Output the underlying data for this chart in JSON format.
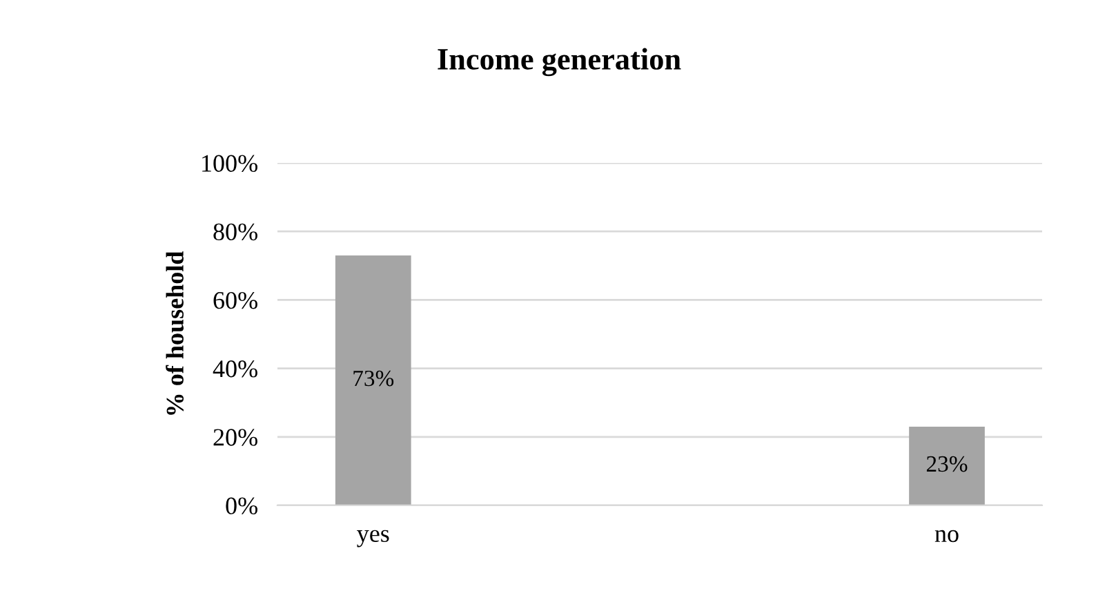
{
  "chart_data": {
    "type": "bar",
    "title": "Income generation",
    "ylabel": "% of household",
    "categories": [
      "yes",
      "no"
    ],
    "series": [
      {
        "color": "#a5a5a5",
        "values": [
          73,
          23
        ],
        "value_labels": [
          "73%",
          "23%"
        ]
      }
    ],
    "ylim": [
      0,
      100
    ],
    "yticks": [
      {
        "value": 0,
        "label": "0%"
      },
      {
        "value": 20,
        "label": "20%"
      },
      {
        "value": 40,
        "label": "40%"
      },
      {
        "value": 60,
        "label": "60%"
      },
      {
        "value": 80,
        "label": "80%"
      },
      {
        "value": 100,
        "label": "100%"
      }
    ],
    "grid": "y"
  }
}
